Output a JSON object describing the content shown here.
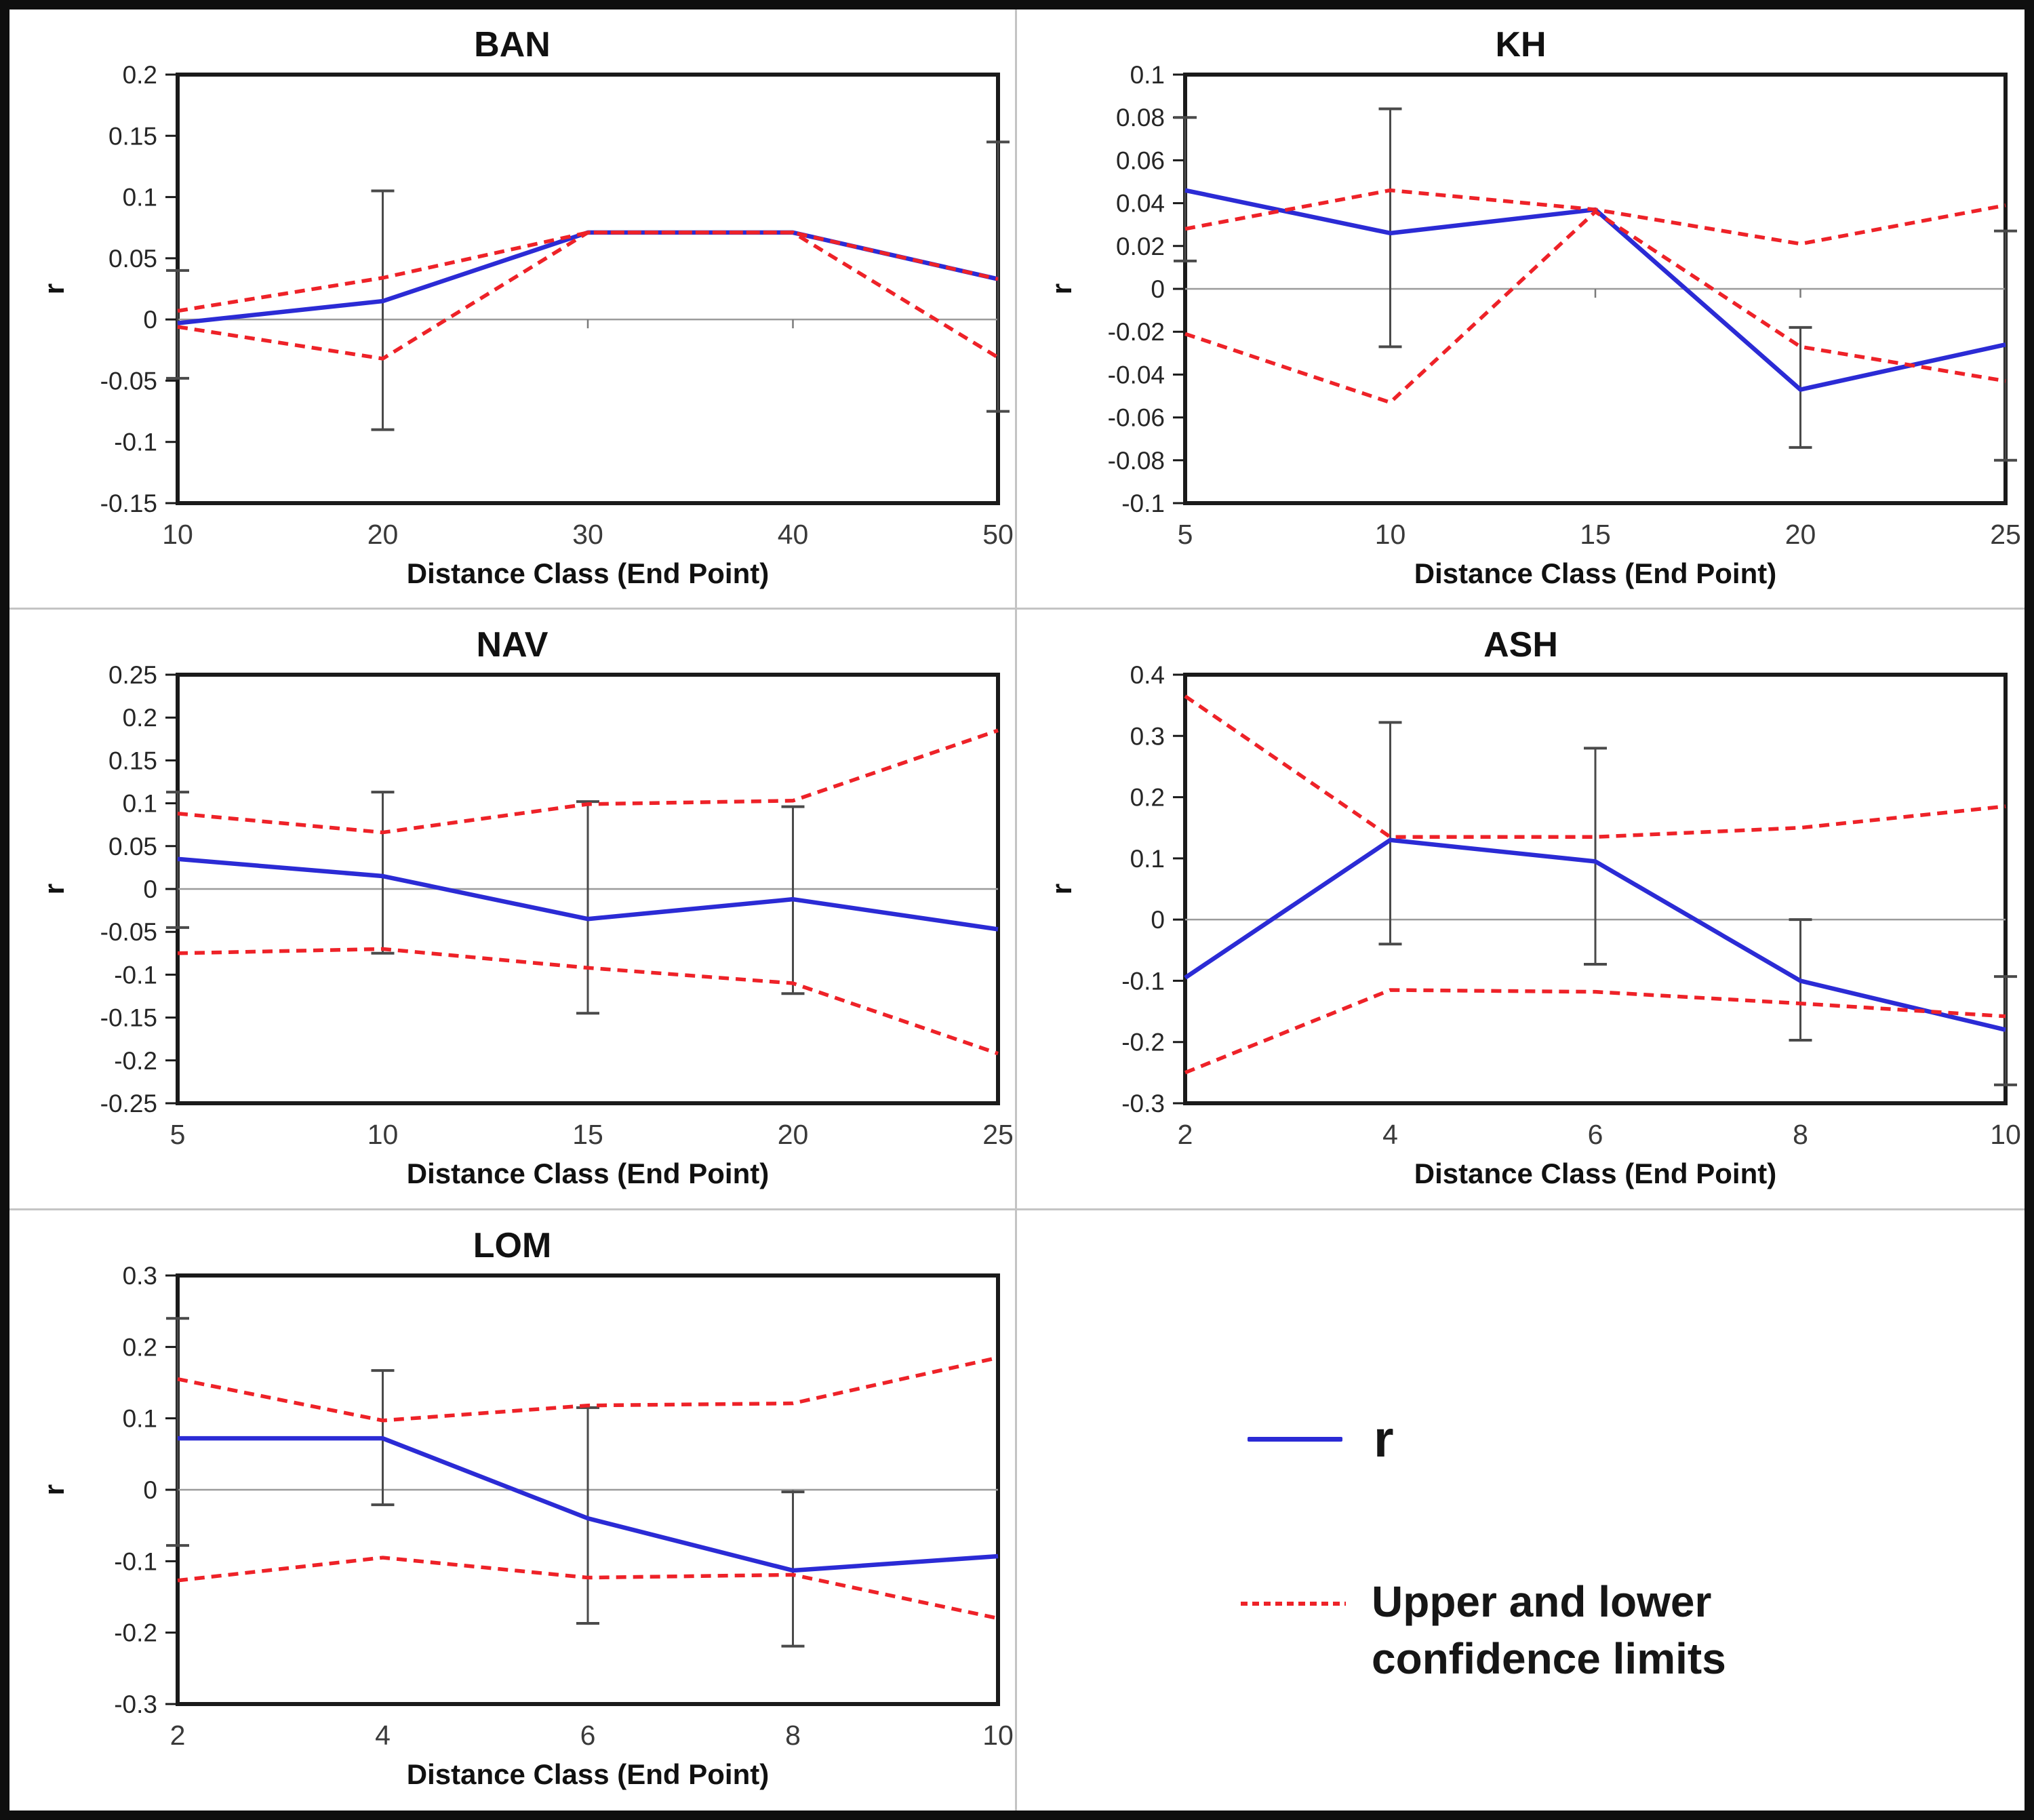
{
  "legend": {
    "r_label": "r",
    "ci_label_line1": "Upper and lower",
    "ci_label_line2": "confidence limits"
  },
  "colors": {
    "r_line": "#2b2bd5",
    "ci_line": "#ee2228",
    "error_bar": "#4a4a4a",
    "zero_line": "#9b9b9b",
    "category_tick": "#7a7a7a",
    "frame": "#1a1a1a"
  },
  "chart_data": [
    {
      "type": "line",
      "title": "BAN",
      "xlabel": "Distance Class (End Point)",
      "ylabel": "r",
      "x": [
        10,
        20,
        30,
        40,
        50
      ],
      "ylim": [
        -0.15,
        0.2
      ],
      "ytick_step": 0.05,
      "grid": "zero-line-only",
      "series": [
        {
          "name": "r",
          "values": [
            -0.003,
            0.015,
            0.071,
            0.071,
            0.033
          ]
        },
        {
          "name": "upper_confidence_limit",
          "values": [
            0.007,
            0.034,
            0.071,
            0.071,
            0.033
          ]
        },
        {
          "name": "lower_confidence_limit",
          "values": [
            -0.006,
            -0.032,
            0.071,
            0.071,
            -0.031
          ]
        }
      ],
      "error_bars": [
        {
          "x": 10,
          "low": -0.048,
          "high": 0.04
        },
        {
          "x": 20,
          "low": -0.09,
          "high": 0.105
        },
        {
          "x": 50,
          "low": -0.075,
          "high": 0.145
        }
      ]
    },
    {
      "type": "line",
      "title": "KH",
      "xlabel": "Distance Class (End Point)",
      "ylabel": "r",
      "x": [
        5,
        10,
        15,
        20,
        25
      ],
      "ylim": [
        -0.1,
        0.1
      ],
      "ytick_step": 0.02,
      "grid": "zero-line-only",
      "series": [
        {
          "name": "r",
          "values": [
            0.046,
            0.026,
            0.037,
            -0.047,
            -0.026
          ]
        },
        {
          "name": "upper_confidence_limit",
          "values": [
            0.028,
            0.046,
            0.037,
            0.021,
            0.039
          ]
        },
        {
          "name": "lower_confidence_limit",
          "values": [
            -0.021,
            -0.053,
            0.036,
            -0.027,
            -0.043
          ]
        }
      ],
      "error_bars": [
        {
          "x": 5,
          "low": 0.013,
          "high": 0.08
        },
        {
          "x": 10,
          "low": -0.027,
          "high": 0.084
        },
        {
          "x": 20,
          "low": -0.074,
          "high": -0.018
        },
        {
          "x": 25,
          "low": -0.08,
          "high": 0.027
        }
      ]
    },
    {
      "type": "line",
      "title": "NAV",
      "xlabel": "Distance Class (End Point)",
      "ylabel": "r",
      "x": [
        5,
        10,
        15,
        20,
        25
      ],
      "ylim": [
        -0.25,
        0.25
      ],
      "ytick_step": 0.05,
      "grid": "zero-line-only",
      "series": [
        {
          "name": "r",
          "values": [
            0.035,
            0.015,
            -0.035,
            -0.012,
            -0.047
          ]
        },
        {
          "name": "upper_confidence_limit",
          "values": [
            0.088,
            0.066,
            0.099,
            0.103,
            0.185
          ]
        },
        {
          "name": "lower_confidence_limit",
          "values": [
            -0.075,
            -0.07,
            -0.092,
            -0.11,
            -0.192
          ]
        }
      ],
      "error_bars": [
        {
          "x": 5,
          "low": -0.045,
          "high": 0.113
        },
        {
          "x": 10,
          "low": -0.075,
          "high": 0.113
        },
        {
          "x": 15,
          "low": -0.145,
          "high": 0.102
        },
        {
          "x": 20,
          "low": -0.122,
          "high": 0.096
        }
      ]
    },
    {
      "type": "line",
      "title": "ASH",
      "xlabel": "Distance Class (End Point)",
      "ylabel": "r",
      "x": [
        2,
        4,
        6,
        8,
        10
      ],
      "ylim": [
        -0.3,
        0.4
      ],
      "ytick_step": 0.1,
      "grid": "zero-line-only",
      "series": [
        {
          "name": "r",
          "values": [
            -0.095,
            0.13,
            0.095,
            -0.1,
            -0.18
          ]
        },
        {
          "name": "upper_confidence_limit",
          "values": [
            0.365,
            0.135,
            0.135,
            0.15,
            0.185
          ]
        },
        {
          "name": "lower_confidence_limit",
          "values": [
            -0.25,
            -0.115,
            -0.118,
            -0.137,
            -0.158
          ]
        }
      ],
      "error_bars": [
        {
          "x": 4,
          "low": -0.04,
          "high": 0.322
        },
        {
          "x": 6,
          "low": -0.073,
          "high": 0.28
        },
        {
          "x": 8,
          "low": -0.197,
          "high": 0.0
        },
        {
          "x": 10,
          "low": -0.27,
          "high": -0.093
        }
      ]
    },
    {
      "type": "line",
      "title": "LOM",
      "xlabel": "Distance Class (End Point)",
      "ylabel": "r",
      "x": [
        2,
        4,
        6,
        8,
        10
      ],
      "ylim": [
        -0.3,
        0.3
      ],
      "ytick_step": 0.1,
      "grid": "zero-line-only",
      "series": [
        {
          "name": "r",
          "values": [
            0.072,
            0.072,
            -0.04,
            -0.113,
            -0.093
          ]
        },
        {
          "name": "upper_confidence_limit",
          "values": [
            0.155,
            0.097,
            0.118,
            0.121,
            0.185
          ]
        },
        {
          "name": "lower_confidence_limit",
          "values": [
            -0.127,
            -0.095,
            -0.123,
            -0.119,
            -0.18
          ]
        }
      ],
      "error_bars": [
        {
          "x": 2,
          "low": -0.078,
          "high": 0.24
        },
        {
          "x": 4,
          "low": -0.021,
          "high": 0.167
        },
        {
          "x": 6,
          "low": -0.187,
          "high": 0.115
        },
        {
          "x": 8,
          "low": -0.219,
          "high": -0.003
        }
      ]
    }
  ]
}
